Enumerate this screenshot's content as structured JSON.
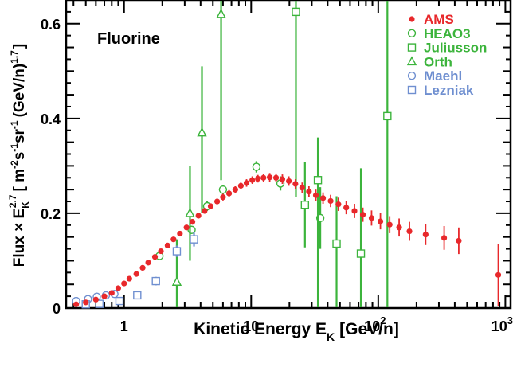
{
  "chart_data": {
    "type": "scatter",
    "annotation": "Fluorine",
    "xlabel_main": "Kinetic Energy E",
    "xlabel_sub": "K",
    "xlabel_unit": "[GeV/n]",
    "ylabel_lead": "Flux × E",
    "ylabel_sub": "K",
    "ylabel_sup": "2.7",
    "ylabel_mid1": "[ m",
    "ylabel_sup2": "-2",
    "ylabel_mid2": "s",
    "ylabel_sup3": "-1",
    "ylabel_mid3": "sr",
    "ylabel_sup4": "-1",
    "ylabel_mid4": "(GeV/n)",
    "ylabel_sup5": "1.7",
    "ylabel_end": "]",
    "xscale": "log",
    "xlim": [
      0.35,
      1100
    ],
    "ylim": [
      0,
      0.65
    ],
    "x_tick_labels": [
      {
        "base": "1",
        "exp": "",
        "value": 1
      },
      {
        "base": "10",
        "exp": "",
        "value": 10
      },
      {
        "base": "10",
        "exp": "2",
        "value": 100
      },
      {
        "base": "10",
        "exp": "3",
        "value": 1000
      }
    ],
    "y_ticks": [
      0,
      0.2,
      0.4,
      0.6
    ],
    "y_tick_labels": [
      "0",
      "0.2",
      "0.4",
      "0.6"
    ],
    "legend_position": "top-right",
    "colors": {
      "ams": "#e8282b",
      "green": "#3cb43c",
      "blue": "#6f8fd0"
    },
    "series": [
      {
        "name": "AMS",
        "marker": "dot",
        "color": "#e8282b",
        "points": [
          [
            0.42,
            0.008
          ],
          [
            0.5,
            0.012
          ],
          [
            0.6,
            0.018
          ],
          [
            0.7,
            0.025
          ],
          [
            0.8,
            0.032
          ],
          [
            0.9,
            0.042
          ],
          [
            1.0,
            0.052
          ],
          [
            1.1,
            0.062
          ],
          [
            1.25,
            0.072
          ],
          [
            1.4,
            0.085
          ],
          [
            1.55,
            0.096
          ],
          [
            1.75,
            0.108
          ],
          [
            1.95,
            0.12
          ],
          [
            2.2,
            0.132
          ],
          [
            2.45,
            0.145
          ],
          [
            2.75,
            0.157
          ],
          [
            3.1,
            0.17
          ],
          [
            3.45,
            0.182
          ],
          [
            3.85,
            0.195
          ],
          [
            4.3,
            0.205
          ],
          [
            4.8,
            0.215
          ],
          [
            5.4,
            0.225
          ],
          [
            6.0,
            0.234
          ],
          [
            6.7,
            0.242
          ],
          [
            7.5,
            0.25
          ],
          [
            8.3,
            0.258
          ],
          [
            9.2,
            0.264
          ],
          [
            10.2,
            0.27
          ],
          [
            11.3,
            0.273
          ],
          [
            12.5,
            0.275
          ],
          [
            14.0,
            0.276
          ],
          [
            15.7,
            0.275
          ],
          [
            17.6,
            0.272
          ],
          [
            19.8,
            0.268
          ],
          [
            22.3,
            0.262
          ],
          [
            25.2,
            0.254
          ],
          [
            28.5,
            0.246
          ],
          [
            32.3,
            0.238
          ],
          [
            36.8,
            0.232
          ],
          [
            42.2,
            0.226
          ],
          [
            48.6,
            0.219
          ],
          [
            56.0,
            0.212
          ],
          [
            65.0,
            0.205
          ],
          [
            75.7,
            0.197
          ],
          [
            88.6,
            0.19
          ],
          [
            104.0,
            0.183
          ],
          [
            123.0,
            0.176
          ],
          [
            146.0,
            0.17
          ],
          [
            176.0,
            0.162
          ],
          [
            236.0,
            0.155
          ],
          [
            330.0,
            0.148
          ],
          [
            430.0,
            0.142
          ],
          [
            880.0,
            0.07
          ]
        ],
        "err": [
          0.003,
          0.003,
          0.003,
          0.003,
          0.003,
          0.003,
          0.004,
          0.004,
          0.004,
          0.004,
          0.004,
          0.005,
          0.005,
          0.005,
          0.005,
          0.005,
          0.005,
          0.006,
          0.006,
          0.006,
          0.006,
          0.006,
          0.007,
          0.007,
          0.007,
          0.007,
          0.008,
          0.008,
          0.008,
          0.008,
          0.009,
          0.009,
          0.01,
          0.01,
          0.01,
          0.011,
          0.011,
          0.012,
          0.012,
          0.013,
          0.014,
          0.014,
          0.015,
          0.015,
          0.016,
          0.017,
          0.018,
          0.019,
          0.02,
          0.022,
          0.025,
          0.028,
          0.065
        ]
      },
      {
        "name": "HEAO3",
        "marker": "circle",
        "color": "#3cb43c",
        "points": [
          [
            1.9,
            0.11
          ],
          [
            3.4,
            0.165
          ],
          [
            4.5,
            0.215
          ],
          [
            6.0,
            0.25
          ],
          [
            11.0,
            0.298
          ],
          [
            17.0,
            0.263
          ],
          [
            35.0,
            0.19
          ]
        ],
        "err": [
          0.006,
          0.008,
          0.01,
          0.01,
          0.012,
          0.015,
          0.065
        ]
      },
      {
        "name": "Juliusson",
        "marker": "square",
        "color": "#3cb43c",
        "points": [
          [
            22.5,
            0.625
          ],
          [
            26.5,
            0.218
          ],
          [
            33.5,
            0.27
          ],
          [
            47.0,
            0.136
          ],
          [
            73.0,
            0.115
          ],
          [
            118.0,
            0.405
          ]
        ],
        "err_lo": [
          0.39,
          0.09,
          0.27,
          0.136,
          0.115,
          0.405
        ],
        "err_hi": [
          0.05,
          0.09,
          0.09,
          0.1,
          0.18,
          0.25
        ]
      },
      {
        "name": "Orth",
        "marker": "triangle",
        "color": "#3cb43c",
        "points": [
          [
            2.6,
            0.055
          ],
          [
            3.3,
            0.2
          ],
          [
            4.1,
            0.37
          ],
          [
            5.8,
            0.62
          ]
        ],
        "err_lo": [
          0.055,
          0.1,
          0.17,
          0.35
        ],
        "err_hi": [
          0.09,
          0.1,
          0.14,
          0.06
        ]
      },
      {
        "name": "Maehl",
        "marker": "circle",
        "color": "#6f8fd0",
        "points": [
          [
            0.42,
            0.015
          ],
          [
            0.52,
            0.019
          ],
          [
            0.61,
            0.024
          ],
          [
            0.72,
            0.027
          ],
          [
            0.84,
            0.03
          ]
        ],
        "err": [
          0.003,
          0.003,
          0.003,
          0.003,
          0.003
        ]
      },
      {
        "name": "Lezniak",
        "marker": "square",
        "color": "#6f8fd0",
        "points": [
          [
            0.5,
            0.008
          ],
          [
            0.64,
            0.009
          ],
          [
            0.92,
            0.015
          ],
          [
            1.27,
            0.027
          ],
          [
            1.78,
            0.057
          ],
          [
            2.6,
            0.12
          ],
          [
            3.55,
            0.145
          ]
        ],
        "err": [
          0.005,
          0.005,
          0.006,
          0.007,
          0.009,
          0.012,
          0.015
        ]
      }
    ]
  }
}
